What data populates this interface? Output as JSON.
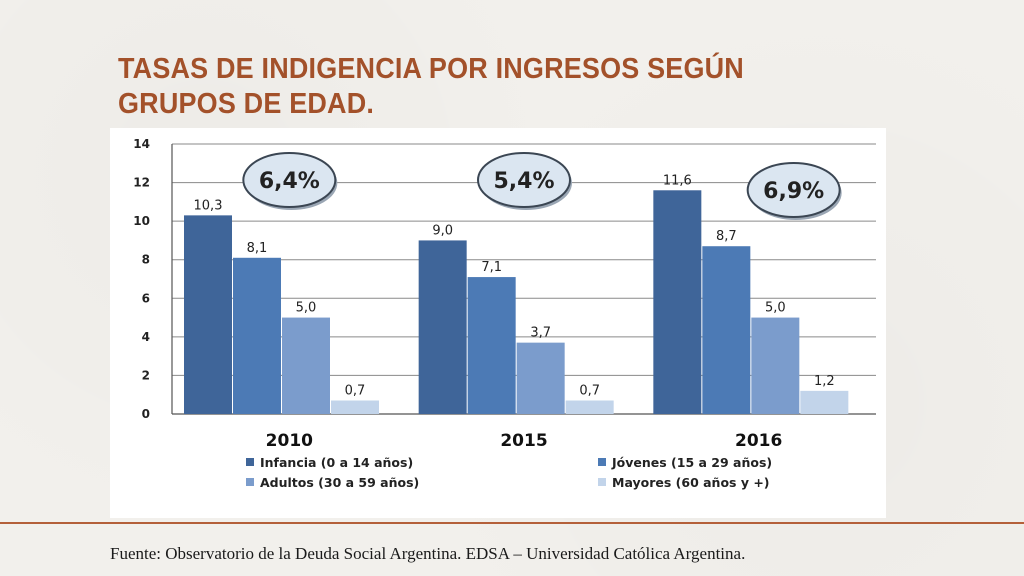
{
  "slide": {
    "title": "TASAS DE INDIGENCIA POR INGRESOS SEGÚN GRUPOS DE EDAD.",
    "source": "Fuente: Observatorio de la Deuda Social Argentina. EDSA – Universidad Católica Argentina."
  },
  "chart_data": {
    "type": "bar",
    "title": "",
    "xlabel": "",
    "ylabel": "",
    "ylim": [
      0,
      14
    ],
    "yticks": [
      0,
      2,
      4,
      6,
      8,
      10,
      12,
      14
    ],
    "grid": true,
    "legend_position": "bottom",
    "categories": [
      "2010",
      "2015",
      "2016"
    ],
    "series": [
      {
        "name": "Infancia (0 a 14 años)",
        "color": "#3f6599",
        "values": [
          10.3,
          9.0,
          11.6
        ],
        "labels": [
          "10,3",
          "9,0",
          "11,6"
        ]
      },
      {
        "name": "Jóvenes (15 a 29 años)",
        "color": "#4c7ab5",
        "values": [
          8.1,
          7.1,
          8.7
        ],
        "labels": [
          "8,1",
          "7,1",
          "8,7"
        ]
      },
      {
        "name": "Adultos (30 a 59 años)",
        "color": "#7b9ccc",
        "values": [
          5.0,
          3.7,
          5.0
        ],
        "labels": [
          "5,0",
          "3,7",
          "5,0"
        ]
      },
      {
        "name": "Mayores (60 años y +)",
        "color": "#c2d4ea",
        "values": [
          0.7,
          0.7,
          1.2
        ],
        "labels": [
          "0,7",
          "0,7",
          "1,2"
        ]
      }
    ],
    "annotations": [
      {
        "category": "2010",
        "text": "6,4%"
      },
      {
        "category": "2015",
        "text": "5,4%"
      },
      {
        "category": "2016",
        "text": "6,9%"
      }
    ]
  }
}
